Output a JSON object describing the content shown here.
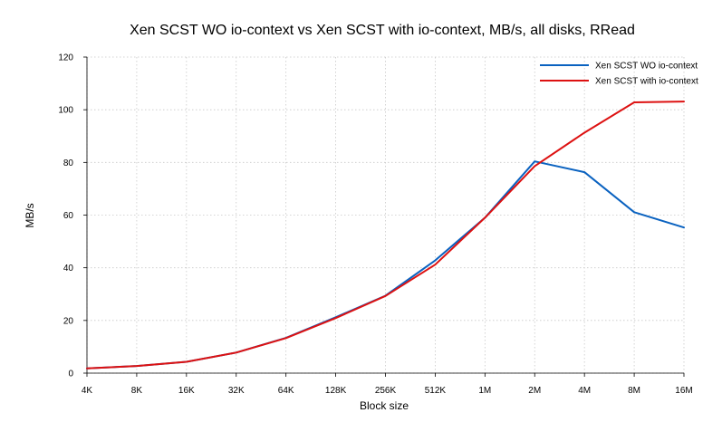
{
  "chart_data": {
    "type": "line",
    "title": "Xen SCST WO io-context vs Xen SCST with io-context, MB/s, all disks, RRead",
    "xlabel": "Block size",
    "ylabel": "MB/s",
    "categories": [
      "4K",
      "8K",
      "16K",
      "32K",
      "64K",
      "128K",
      "256K",
      "512K",
      "1M",
      "2M",
      "4M",
      "8M",
      "16M"
    ],
    "ylim": [
      0,
      120
    ],
    "yticks": [
      0,
      20,
      40,
      60,
      80,
      100,
      120
    ],
    "grid": true,
    "legend_position": "top-right",
    "series": [
      {
        "name": "Xen SCST WO io-context",
        "color": "#0a62c0",
        "values": [
          1.8,
          2.7,
          4.3,
          7.8,
          13.4,
          21.2,
          29.4,
          42.8,
          59.0,
          80.4,
          76.3,
          61.1,
          55.3
        ]
      },
      {
        "name": "Xen SCST with io-context",
        "color": "#dd1111",
        "values": [
          1.8,
          2.7,
          4.3,
          7.8,
          13.3,
          20.9,
          29.3,
          41.2,
          59.0,
          78.6,
          91.3,
          102.8,
          103.1
        ]
      }
    ]
  }
}
